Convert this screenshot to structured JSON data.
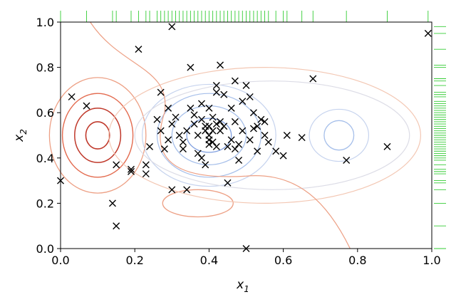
{
  "chart_data": {
    "type": "scatter",
    "xlabel": "x",
    "xlabel_sub": "1",
    "ylabel": "x",
    "ylabel_sub": "2",
    "xlim": [
      0.0,
      1.0
    ],
    "ylim": [
      0.0,
      1.0
    ],
    "grid": false,
    "legend": "none",
    "x_ticks": [
      "0.0",
      "0.2",
      "0.4",
      "0.6",
      "0.8",
      "1.0"
    ],
    "y_ticks": [
      "0.0",
      "0.2",
      "0.4",
      "0.6",
      "0.8",
      "1.0"
    ],
    "marker": "x",
    "marker_color": "#000000",
    "rug_color": "#33cc33",
    "contour_colors": [
      "#c0392b",
      "#e36b4f",
      "#eda085",
      "#f3c7b3",
      "#dcdce6",
      "#c6d3ee",
      "#a6bfea",
      "#7f9fe0"
    ],
    "points": [
      [
        0.0,
        0.3
      ],
      [
        0.03,
        0.67
      ],
      [
        0.07,
        0.63
      ],
      [
        0.14,
        0.2
      ],
      [
        0.15,
        0.1
      ],
      [
        0.15,
        0.37
      ],
      [
        0.19,
        0.34
      ],
      [
        0.19,
        0.35
      ],
      [
        0.21,
        0.88
      ],
      [
        0.23,
        0.37
      ],
      [
        0.23,
        0.33
      ],
      [
        0.24,
        0.45
      ],
      [
        0.26,
        0.57
      ],
      [
        0.27,
        0.69
      ],
      [
        0.27,
        0.52
      ],
      [
        0.28,
        0.44
      ],
      [
        0.29,
        0.62
      ],
      [
        0.29,
        0.48
      ],
      [
        0.3,
        0.98
      ],
      [
        0.3,
        0.55
      ],
      [
        0.3,
        0.26
      ],
      [
        0.31,
        0.58
      ],
      [
        0.32,
        0.5
      ],
      [
        0.33,
        0.47
      ],
      [
        0.33,
        0.44
      ],
      [
        0.34,
        0.26
      ],
      [
        0.34,
        0.52
      ],
      [
        0.35,
        0.62
      ],
      [
        0.35,
        0.8
      ],
      [
        0.36,
        0.55
      ],
      [
        0.36,
        0.59
      ],
      [
        0.37,
        0.42
      ],
      [
        0.37,
        0.5
      ],
      [
        0.38,
        0.64
      ],
      [
        0.38,
        0.57
      ],
      [
        0.38,
        0.4
      ],
      [
        0.39,
        0.37
      ],
      [
        0.39,
        0.54
      ],
      [
        0.39,
        0.52
      ],
      [
        0.4,
        0.62
      ],
      [
        0.4,
        0.5
      ],
      [
        0.4,
        0.48
      ],
      [
        0.4,
        0.46
      ],
      [
        0.4,
        0.54
      ],
      [
        0.41,
        0.58
      ],
      [
        0.41,
        0.52
      ],
      [
        0.41,
        0.47
      ],
      [
        0.42,
        0.55
      ],
      [
        0.42,
        0.72
      ],
      [
        0.42,
        0.45
      ],
      [
        0.42,
        0.69
      ],
      [
        0.43,
        0.52
      ],
      [
        0.43,
        0.56
      ],
      [
        0.43,
        0.81
      ],
      [
        0.44,
        0.68
      ],
      [
        0.44,
        0.54
      ],
      [
        0.45,
        0.45
      ],
      [
        0.45,
        0.29
      ],
      [
        0.46,
        0.62
      ],
      [
        0.46,
        0.48
      ],
      [
        0.47,
        0.74
      ],
      [
        0.47,
        0.56
      ],
      [
        0.47,
        0.44
      ],
      [
        0.48,
        0.39
      ],
      [
        0.48,
        0.46
      ],
      [
        0.49,
        0.65
      ],
      [
        0.49,
        0.52
      ],
      [
        0.5,
        0.72
      ],
      [
        0.5,
        0.0
      ],
      [
        0.51,
        0.67
      ],
      [
        0.51,
        0.48
      ],
      [
        0.52,
        0.6
      ],
      [
        0.52,
        0.53
      ],
      [
        0.53,
        0.43
      ],
      [
        0.53,
        0.54
      ],
      [
        0.54,
        0.57
      ],
      [
        0.55,
        0.5
      ],
      [
        0.55,
        0.56
      ],
      [
        0.56,
        0.47
      ],
      [
        0.58,
        0.43
      ],
      [
        0.6,
        0.41
      ],
      [
        0.61,
        0.5
      ],
      [
        0.65,
        0.49
      ],
      [
        0.68,
        0.75
      ],
      [
        0.77,
        0.39
      ],
      [
        0.88,
        0.45
      ],
      [
        0.99,
        0.95
      ]
    ],
    "rug_x": [
      0.0,
      0.07,
      0.14,
      0.15,
      0.19,
      0.21,
      0.23,
      0.24,
      0.26,
      0.27,
      0.28,
      0.29,
      0.3,
      0.31,
      0.32,
      0.33,
      0.34,
      0.35,
      0.36,
      0.37,
      0.38,
      0.39,
      0.4,
      0.41,
      0.42,
      0.43,
      0.44,
      0.45,
      0.46,
      0.47,
      0.48,
      0.49,
      0.5,
      0.51,
      0.52,
      0.53,
      0.54,
      0.55,
      0.56,
      0.58,
      0.6,
      0.61,
      0.65,
      0.68,
      0.77,
      0.88,
      0.99
    ],
    "rug_y": [
      0.0,
      0.1,
      0.2,
      0.26,
      0.29,
      0.3,
      0.33,
      0.34,
      0.35,
      0.37,
      0.39,
      0.4,
      0.41,
      0.42,
      0.43,
      0.44,
      0.45,
      0.46,
      0.47,
      0.48,
      0.49,
      0.5,
      0.51,
      0.52,
      0.53,
      0.54,
      0.55,
      0.56,
      0.57,
      0.58,
      0.59,
      0.6,
      0.61,
      0.62,
      0.63,
      0.64,
      0.65,
      0.67,
      0.68,
      0.69,
      0.72,
      0.74,
      0.75,
      0.8,
      0.81,
      0.88,
      0.95,
      0.98
    ]
  }
}
